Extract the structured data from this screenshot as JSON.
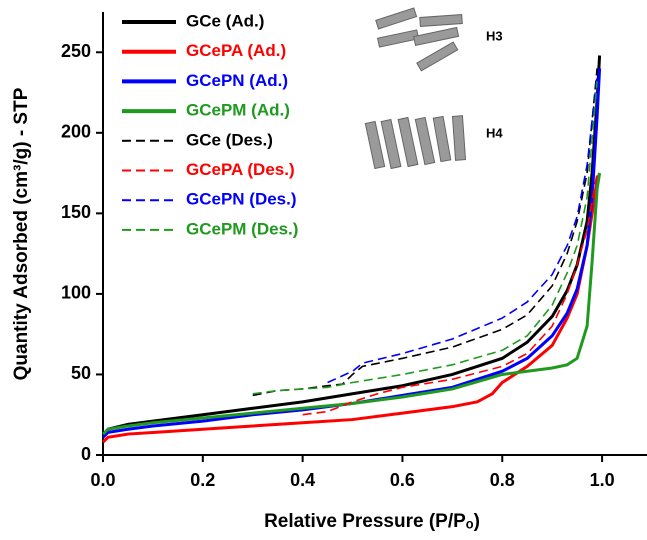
{
  "chart_data": {
    "type": "line",
    "xlabel": "Relative Pressure (P/Pₒ)",
    "ylabel": "Quantity Adsorbed (cm³/g) - STP",
    "xlim": [
      0,
      1.09
    ],
    "ylim": [
      0,
      275
    ],
    "xticks": [
      {
        "value": 0,
        "label": "0.0"
      },
      0.2,
      0.4,
      0.6,
      0.8,
      {
        "value": 1,
        "label": "1.0"
      }
    ],
    "yticks": [
      0,
      50,
      100,
      150,
      200,
      250
    ],
    "annotations": [
      "H3",
      "H4"
    ],
    "series": [
      {
        "name": "GCe (Ad.)",
        "color": "#000000",
        "dashed": false,
        "x": [
          0,
          0.01,
          0.05,
          0.1,
          0.2,
          0.3,
          0.4,
          0.5,
          0.6,
          0.7,
          0.8,
          0.85,
          0.9,
          0.93,
          0.95,
          0.97,
          0.98,
          0.99,
          0.995
        ],
        "values": [
          12,
          16,
          19,
          21,
          25,
          29,
          33,
          38,
          43,
          50,
          60,
          70,
          86,
          102,
          118,
          145,
          175,
          220,
          248
        ]
      },
      {
        "name": "GCePA (Ad.)",
        "color": "#ff0000",
        "dashed": false,
        "x": [
          0,
          0.01,
          0.05,
          0.1,
          0.2,
          0.3,
          0.4,
          0.5,
          0.6,
          0.7,
          0.75,
          0.78,
          0.8,
          0.85,
          0.9,
          0.93,
          0.95,
          0.97,
          0.98,
          0.99,
          0.995
        ],
        "values": [
          8,
          11,
          13,
          14,
          16,
          18,
          20,
          22,
          26,
          30,
          33,
          38,
          45,
          55,
          68,
          85,
          100,
          130,
          150,
          170,
          175
        ]
      },
      {
        "name": "GCePN (Ad.)",
        "color": "#0000ff",
        "dashed": false,
        "x": [
          0,
          0.01,
          0.05,
          0.1,
          0.2,
          0.3,
          0.4,
          0.5,
          0.6,
          0.7,
          0.8,
          0.85,
          0.9,
          0.93,
          0.95,
          0.97,
          0.98,
          0.99,
          0.995
        ],
        "values": [
          11,
          14,
          16,
          18,
          21,
          25,
          28,
          32,
          37,
          42,
          52,
          60,
          74,
          88,
          103,
          130,
          160,
          210,
          240
        ]
      },
      {
        "name": "GCePM (Ad.)",
        "color": "#1f9a1f",
        "dashed": false,
        "x": [
          0,
          0.01,
          0.05,
          0.1,
          0.2,
          0.3,
          0.4,
          0.5,
          0.6,
          0.7,
          0.8,
          0.85,
          0.9,
          0.93,
          0.95,
          0.97,
          0.98,
          0.99,
          0.995
        ],
        "values": [
          13,
          16,
          18,
          20,
          23,
          26,
          29,
          32,
          36,
          41,
          50,
          52,
          54,
          56,
          60,
          80,
          120,
          165,
          175
        ]
      },
      {
        "name": "GCe (Des.)",
        "color": "#000000",
        "dashed": true,
        "x": [
          0.3,
          0.35,
          0.4,
          0.45,
          0.48,
          0.5,
          0.52,
          0.6,
          0.7,
          0.8,
          0.85,
          0.9,
          0.93,
          0.95,
          0.97,
          0.99
        ],
        "values": [
          37,
          40,
          41,
          43,
          44,
          50,
          55,
          60,
          67,
          78,
          87,
          105,
          125,
          145,
          175,
          240
        ]
      },
      {
        "name": "GCePA (Des.)",
        "color": "#ff0000",
        "dashed": true,
        "x": [
          0.4,
          0.45,
          0.5,
          0.55,
          0.6,
          0.7,
          0.8,
          0.85,
          0.9,
          0.93,
          0.95,
          0.97,
          0.99
        ],
        "values": [
          25,
          27,
          33,
          38,
          42,
          47,
          55,
          63,
          80,
          100,
          118,
          140,
          175
        ]
      },
      {
        "name": "GCePN (Des.)",
        "color": "#0000ff",
        "dashed": true,
        "x": [
          0.45,
          0.5,
          0.52,
          0.6,
          0.7,
          0.8,
          0.85,
          0.9,
          0.93,
          0.95,
          0.97,
          0.99
        ],
        "values": [
          45,
          52,
          57,
          63,
          72,
          85,
          95,
          112,
          130,
          148,
          180,
          235
        ]
      },
      {
        "name": "GCePM (Des.)",
        "color": "#1f9a1f",
        "dashed": true,
        "x": [
          0.3,
          0.35,
          0.4,
          0.45,
          0.5,
          0.6,
          0.7,
          0.8,
          0.85,
          0.9,
          0.93,
          0.95,
          0.97,
          0.99
        ],
        "values": [
          38,
          40,
          41,
          42,
          45,
          50,
          56,
          65,
          74,
          93,
          113,
          130,
          160,
          232
        ]
      }
    ]
  }
}
